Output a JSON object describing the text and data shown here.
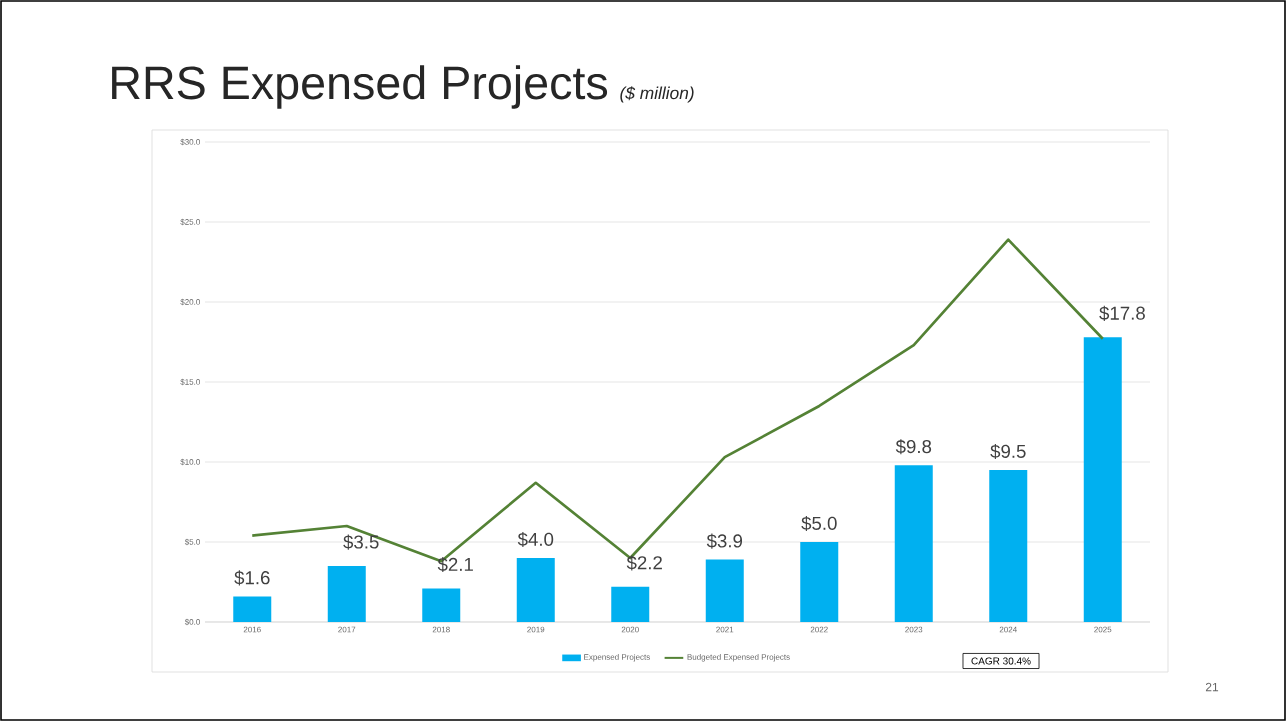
{
  "chart_data": {
    "type": "bar",
    "title": "RRS Expensed Projects",
    "subtitle": "($ million)",
    "categories": [
      "2016",
      "2017",
      "2018",
      "2019",
      "2020",
      "2021",
      "2022",
      "2023",
      "2024",
      "2025"
    ],
    "series": [
      {
        "name": "Expensed Projects",
        "color": "#00b0f0",
        "values": [
          1.6,
          3.5,
          2.1,
          4.0,
          2.2,
          3.9,
          5.0,
          9.8,
          9.5,
          17.8
        ],
        "value_labels": [
          "$1.6",
          "$3.5",
          "$2.1",
          "$4.0",
          "$2.2",
          "$3.9",
          "$5.0",
          "$9.8",
          "$9.5",
          "$17.8"
        ]
      },
      {
        "name": "Budgeted Expensed Projects",
        "type": "line",
        "color": "#548235",
        "values": [
          5.4,
          6.0,
          3.8,
          8.7,
          4.0,
          10.3,
          13.5,
          17.3,
          23.9,
          17.7
        ]
      }
    ],
    "ylim": [
      0,
      30
    ],
    "yticks": [
      {
        "value": 0,
        "label": "$0.0"
      },
      {
        "value": 5,
        "label": "$5.0"
      },
      {
        "value": 10,
        "label": "$10.0"
      },
      {
        "value": 15,
        "label": "$15.0"
      },
      {
        "value": 20,
        "label": "$20.0"
      },
      {
        "value": 25,
        "label": "$25.0"
      },
      {
        "value": 30,
        "label": "$30.0"
      }
    ],
    "grid": "y",
    "legend": "bottom",
    "marker": "none",
    "annotations": [
      "CAGR 30.4%",
      "21"
    ]
  }
}
